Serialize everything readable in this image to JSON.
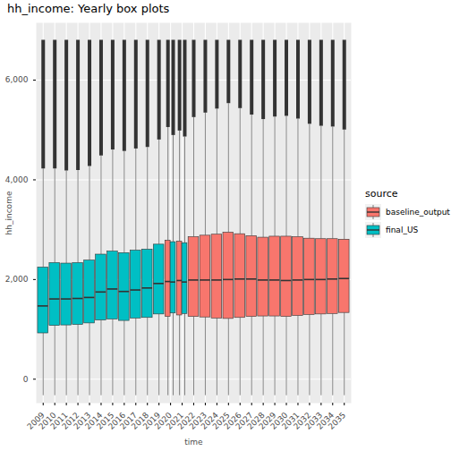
{
  "chart_data": {
    "type": "boxplot",
    "title": "hh_income: Yearly box plots",
    "x_label": "time",
    "y_label": "hh_income",
    "legend_title": "source",
    "legend": "right",
    "grid": true,
    "ylim": [
      -480,
      7150
    ],
    "yticks": [
      0,
      2000,
      4000,
      6000
    ],
    "categories": [
      "2009",
      "2010",
      "2011",
      "2012",
      "2013",
      "2014",
      "2015",
      "2016",
      "2017",
      "2018",
      "2019",
      "2020",
      "2021",
      "2022",
      "2023",
      "2024",
      "2025",
      "2026",
      "2027",
      "2028",
      "2029",
      "2030",
      "2031",
      "2032",
      "2033",
      "2034",
      "2035"
    ],
    "series": [
      {
        "name": "baseline_output",
        "color": "#F8766D",
        "values": [
          null,
          null,
          null,
          null,
          null,
          null,
          null,
          null,
          null,
          null,
          null,
          {
            "low": -330,
            "q1": 1250,
            "median": 1960,
            "q3": 2780,
            "high": 5050,
            "outlier_max": 6800
          },
          {
            "low": -330,
            "q1": 1280,
            "median": 1980,
            "q3": 2760,
            "high": 4980,
            "outlier_max": 6800
          },
          {
            "low": -330,
            "q1": 1250,
            "median": 1990,
            "q3": 2850,
            "high": 5250,
            "outlier_max": 6800
          },
          {
            "low": -330,
            "q1": 1240,
            "median": 1990,
            "q3": 2880,
            "high": 5340,
            "outlier_max": 6800
          },
          {
            "low": -330,
            "q1": 1220,
            "median": 1990,
            "q3": 2900,
            "high": 5420,
            "outlier_max": 6800
          },
          {
            "low": -330,
            "q1": 1210,
            "median": 2000,
            "q3": 2940,
            "high": 5530,
            "outlier_max": 6800
          },
          {
            "low": -330,
            "q1": 1230,
            "median": 2010,
            "q3": 2910,
            "high": 5430,
            "outlier_max": 6800
          },
          {
            "low": -330,
            "q1": 1250,
            "median": 2010,
            "q3": 2870,
            "high": 5300,
            "outlier_max": 6800
          },
          {
            "low": -330,
            "q1": 1260,
            "median": 1990,
            "q3": 2840,
            "high": 5210,
            "outlier_max": 6800
          },
          {
            "low": -330,
            "q1": 1260,
            "median": 1990,
            "q3": 2860,
            "high": 5260,
            "outlier_max": 6800
          },
          {
            "low": -330,
            "q1": 1250,
            "median": 1980,
            "q3": 2860,
            "high": 5275,
            "outlier_max": 6800
          },
          {
            "low": -330,
            "q1": 1270,
            "median": 1990,
            "q3": 2850,
            "high": 5220,
            "outlier_max": 6800
          },
          {
            "low": -330,
            "q1": 1290,
            "median": 2000,
            "q3": 2820,
            "high": 5115,
            "outlier_max": 6800
          },
          {
            "low": -330,
            "q1": 1300,
            "median": 2000,
            "q3": 2810,
            "high": 5075,
            "outlier_max": 6800
          },
          {
            "low": -330,
            "q1": 1310,
            "median": 2010,
            "q3": 2810,
            "high": 5060,
            "outlier_max": 6800
          },
          {
            "low": -330,
            "q1": 1330,
            "median": 2020,
            "q3": 2800,
            "high": 5000,
            "outlier_max": 6800
          }
        ]
      },
      {
        "name": "final_US",
        "color": "#00BFC4",
        "values": [
          {
            "low": -330,
            "q1": 920,
            "median": 1470,
            "q3": 2240,
            "high": 4220,
            "outlier_max": 6800
          },
          {
            "low": -330,
            "q1": 1070,
            "median": 1610,
            "q3": 2330,
            "high": 4220,
            "outlier_max": 6800
          },
          {
            "low": -330,
            "q1": 1080,
            "median": 1610,
            "q3": 2320,
            "high": 4180,
            "outlier_max": 6800
          },
          {
            "low": -330,
            "q1": 1090,
            "median": 1620,
            "q3": 2330,
            "high": 4190,
            "outlier_max": 6800
          },
          {
            "low": -330,
            "q1": 1120,
            "median": 1640,
            "q3": 2380,
            "high": 4270,
            "outlier_max": 6800
          },
          {
            "low": -330,
            "q1": 1180,
            "median": 1750,
            "q3": 2500,
            "high": 4480,
            "outlier_max": 6800
          },
          {
            "low": -330,
            "q1": 1200,
            "median": 1810,
            "q3": 2560,
            "high": 4600,
            "outlier_max": 6800
          },
          {
            "low": -330,
            "q1": 1170,
            "median": 1760,
            "q3": 2530,
            "high": 4570,
            "outlier_max": 6800
          },
          {
            "low": -330,
            "q1": 1220,
            "median": 1790,
            "q3": 2580,
            "high": 4620,
            "outlier_max": 6800
          },
          {
            "low": -330,
            "q1": 1230,
            "median": 1830,
            "q3": 2600,
            "high": 4650,
            "outlier_max": 6800
          },
          {
            "low": -330,
            "q1": 1300,
            "median": 1920,
            "q3": 2700,
            "high": 4800,
            "outlier_max": 6800
          },
          {
            "low": -330,
            "q1": 1320,
            "median": 1950,
            "q3": 2750,
            "high": 4890,
            "outlier_max": 6800
          },
          {
            "low": -330,
            "q1": 1310,
            "median": 1950,
            "q3": 2730,
            "high": 4860,
            "outlier_max": 6800
          },
          null,
          null,
          null,
          null,
          null,
          null,
          null,
          null,
          null,
          null,
          null,
          null,
          null,
          null
        ]
      }
    ]
  }
}
